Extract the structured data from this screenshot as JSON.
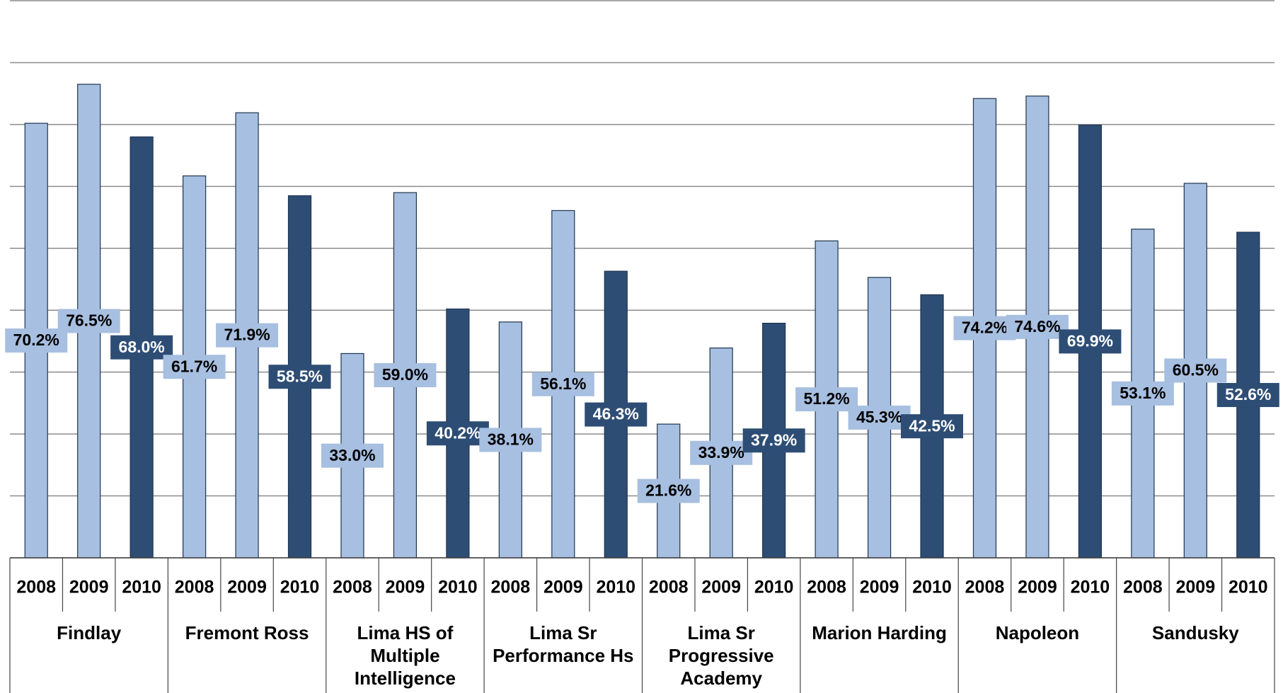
{
  "chart_data": {
    "type": "bar",
    "categories": [
      "2008",
      "2009",
      "2010",
      "2008",
      "2009",
      "2010",
      "2008",
      "2009",
      "2010",
      "2008",
      "2009",
      "2010",
      "2008",
      "2009",
      "2010",
      "2008",
      "2009",
      "2010",
      "2008",
      "2009",
      "2010",
      "2008",
      "2009",
      "2010"
    ],
    "groups": [
      "Findlay",
      "Fremont Ross",
      "Lima HS of Multiple Intelligence",
      "Lima Sr Performance Hs",
      "Lima Sr Progressive Academy",
      "Marion Harding",
      "Napoleon",
      "Sandusky"
    ],
    "values": [
      70.2,
      76.5,
      68.0,
      61.7,
      71.9,
      58.5,
      33.0,
      59.0,
      40.2,
      38.1,
      56.1,
      46.3,
      21.6,
      33.9,
      37.9,
      51.2,
      45.3,
      42.5,
      74.2,
      74.6,
      69.9,
      53.1,
      60.5,
      52.6
    ],
    "value_labels": [
      "70.2%",
      "76.5%",
      "68.0%",
      "61.7%",
      "71.9%",
      "58.5%",
      "33.0%",
      "59.0%",
      "40.2%",
      "38.1%",
      "56.1%",
      "46.3%",
      "21.6%",
      "33.9%",
      "37.9%",
      "51.2%",
      "45.3%",
      "42.5%",
      "74.2%",
      "74.6%",
      "69.9%",
      "53.1%",
      "60.5%",
      "52.6%"
    ],
    "colors": [
      "#a7bfe0",
      "#a7bfe0",
      "#2d4d75"
    ],
    "ylim": [
      0,
      90
    ],
    "yticks": [
      0,
      10,
      20,
      30,
      40,
      50,
      60,
      70,
      80,
      90
    ],
    "grid": true
  }
}
